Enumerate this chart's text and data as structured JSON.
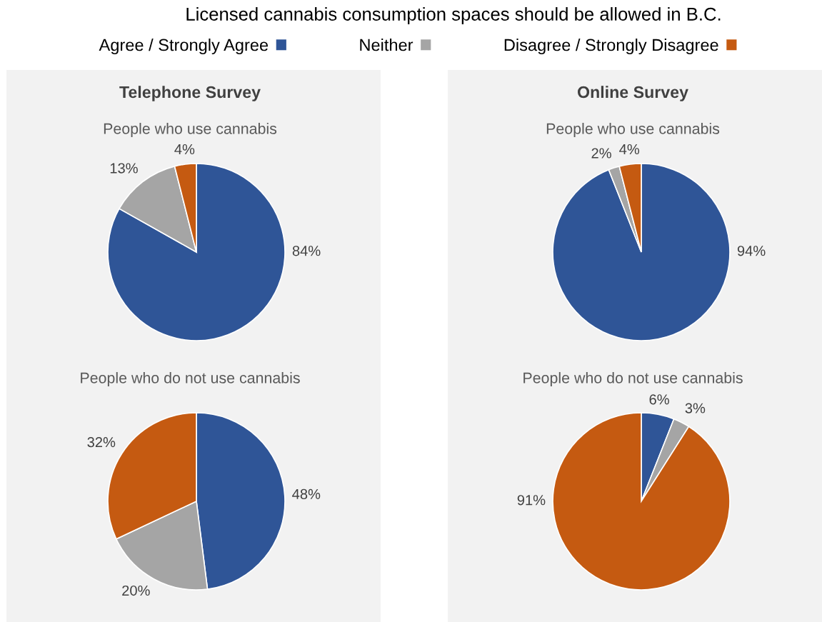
{
  "chart_data": [
    {
      "type": "other",
      "title": "Licensed cannabis consumption spaces should be allowed in B.C."
    },
    {
      "type": "pie",
      "title": "Telephone Survey",
      "subtitle": "People who use cannabis",
      "categories": [
        "Agree / Strongly Agree",
        "Neither",
        "Disagree / Strongly Disagree"
      ],
      "values": [
        84,
        13,
        4
      ],
      "colors": [
        "#2f5597",
        "#a5a5a5",
        "#c55a11"
      ],
      "value_labels": [
        "84%",
        "13%",
        "4%"
      ],
      "legend": "top"
    },
    {
      "type": "pie",
      "subtitle": "People who do not use cannabis",
      "categories": [
        null,
        null,
        null
      ],
      "values": [
        48,
        20,
        32
      ],
      "colors": [
        "#2f5597",
        "#a5a5a5",
        "#c55a11"
      ],
      "value_labels": [
        "48%",
        "20%",
        "32%"
      ]
    },
    {
      "type": "pie",
      "title": "Online Survey",
      "subtitle": "People who use cannabis",
      "categories": [
        null,
        null,
        null
      ],
      "values": [
        94,
        2,
        4
      ],
      "colors": [
        "#2f5597",
        "#a5a5a5",
        "#c55a11"
      ],
      "value_labels": [
        "94%",
        "2%",
        "4%"
      ]
    },
    {
      "type": "pie",
      "subtitle": "People who do not use cannabis",
      "categories": [
        null,
        null,
        null
      ],
      "values": [
        6,
        3,
        91
      ],
      "colors": [
        "#2f5597",
        "#a5a5a5",
        "#c55a11"
      ],
      "value_labels": [
        "6%",
        "3%",
        "91%"
      ]
    }
  ]
}
